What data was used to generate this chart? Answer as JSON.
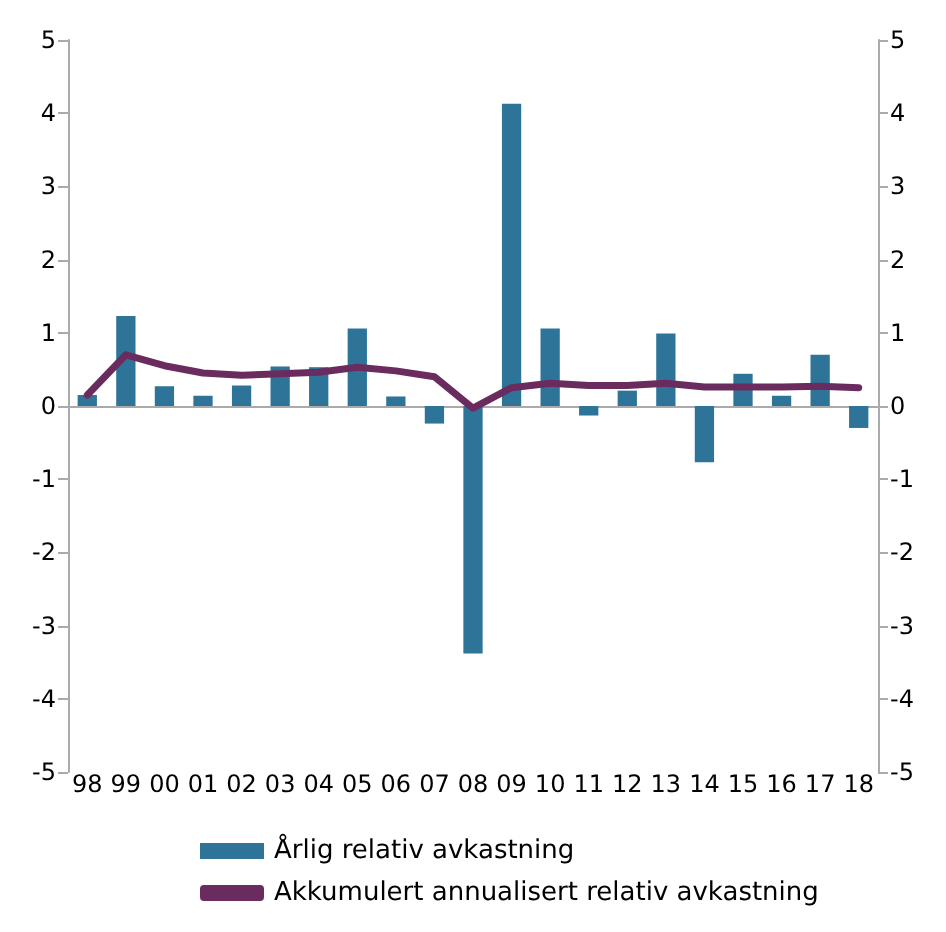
{
  "chart_data": {
    "type": "bar",
    "categories": [
      "98",
      "99",
      "00",
      "01",
      "02",
      "03",
      "04",
      "05",
      "06",
      "07",
      "08",
      "09",
      "10",
      "11",
      "12",
      "13",
      "14",
      "15",
      "16",
      "17",
      "18"
    ],
    "series": [
      {
        "name": "Årlig relativ avkastning",
        "color": "#2e7499",
        "values": [
          0.15,
          1.23,
          0.27,
          0.14,
          0.28,
          0.54,
          0.53,
          1.06,
          0.13,
          -0.24,
          -3.38,
          4.13,
          1.06,
          -0.13,
          0.21,
          0.99,
          -0.77,
          0.44,
          0.14,
          0.7,
          -0.3
        ]
      },
      {
        "name": "Akkumulert annualisert relativ avkastning",
        "type": "line",
        "color": "#6a2c5f",
        "values": [
          0.15,
          0.7,
          0.55,
          0.45,
          0.42,
          0.44,
          0.46,
          0.53,
          0.48,
          0.4,
          -0.03,
          0.25,
          0.31,
          0.28,
          0.28,
          0.31,
          0.26,
          0.26,
          0.26,
          0.27,
          0.25
        ]
      }
    ],
    "ylim": [
      -5,
      5
    ],
    "yticks": [
      -5,
      -4,
      -3,
      -2,
      -1,
      0,
      1,
      2,
      3,
      4,
      5
    ],
    "y2lim": [
      -5,
      5
    ],
    "y2ticks": [
      -5,
      -4,
      -3,
      -2,
      -1,
      0,
      1,
      2,
      3,
      4,
      5
    ],
    "legend": "bottom",
    "marker": "none",
    "line_style": "solid"
  }
}
